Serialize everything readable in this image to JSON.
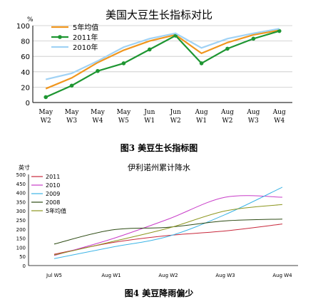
{
  "colors": {
    "chart1": {
      "5年均值": "#f0961e",
      "2011年": "#1e9632",
      "2010年": "#a0d2f5"
    },
    "chart2": {
      "2011": "#c8283c",
      "2010": "#c83cc8",
      "2009": "#3cb4e6",
      "2008": "#2d4b14",
      "5年均值": "#8c961e"
    }
  },
  "captions": {
    "chart1": "图3 美豆生长指标图",
    "chart2": "图4 美豆降雨偏少"
  },
  "chart_data": [
    {
      "type": "line",
      "title": "美国大豆生长指标对比",
      "ylabel": "%",
      "xlabel": "",
      "categories": [
        "May W2",
        "May W3",
        "May W4",
        "May W5",
        "Jun W1",
        "Jun W2",
        "Aug W1",
        "Aug W2",
        "Aug W3",
        "Aug W4"
      ],
      "ylim": [
        0,
        100
      ],
      "yticks": [
        0,
        20,
        40,
        60,
        80,
        100
      ],
      "grid": true,
      "legend": "top-left",
      "series": [
        {
          "name": "5年均值",
          "values": [
            18,
            32,
            52,
            68,
            80,
            88,
            64,
            78,
            88,
            94
          ]
        },
        {
          "name": "2011年",
          "values": [
            7,
            22,
            41,
            51,
            69,
            87,
            51,
            70,
            83,
            93
          ],
          "markers": true
        },
        {
          "name": "2010年",
          "values": [
            30,
            38,
            54,
            72,
            83,
            90,
            71,
            83,
            90,
            96
          ]
        }
      ]
    },
    {
      "type": "line",
      "title": "伊利诺州累计降水",
      "ylabel": "英寸",
      "xlabel": "",
      "categories": [
        "Jul W5",
        "Aug W1",
        "Aug W2",
        "Aug W3",
        "Aug W4"
      ],
      "ylim": [
        0,
        500
      ],
      "yticks": [
        0,
        50,
        100,
        150,
        200,
        250,
        300,
        350,
        400,
        450,
        500
      ],
      "grid": false,
      "legend": "top-left",
      "series": [
        {
          "name": "2011",
          "values": [
            62,
            125,
            165,
            190,
            228
          ]
        },
        {
          "name": "2010",
          "values": [
            55,
            145,
            255,
            375,
            375
          ]
        },
        {
          "name": "2009",
          "values": [
            38,
            100,
            160,
            280,
            430
          ]
        },
        {
          "name": "2008",
          "values": [
            118,
            195,
            210,
            245,
            255
          ]
        },
        {
          "name": "5年均值",
          "values": [
            58,
            130,
            205,
            300,
            335
          ]
        }
      ]
    }
  ]
}
